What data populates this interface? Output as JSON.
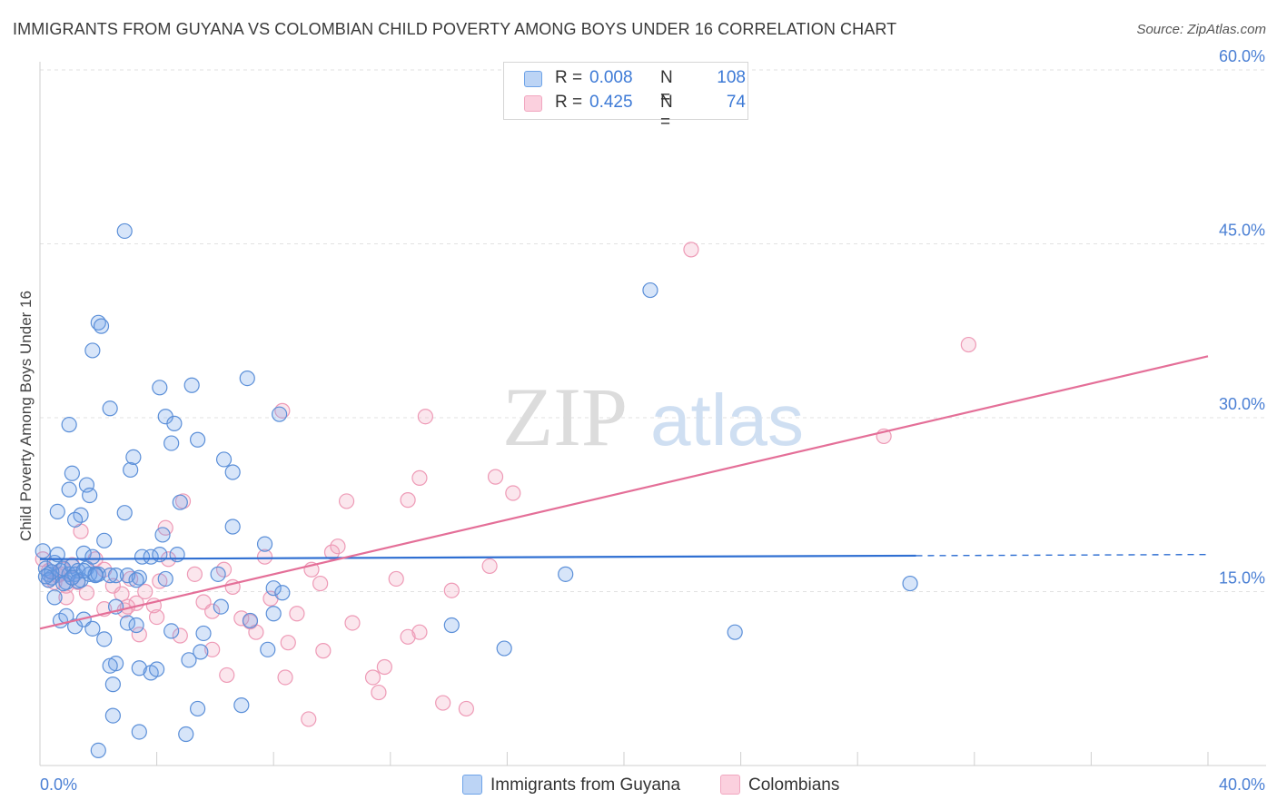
{
  "title": "IMMIGRANTS FROM GUYANA VS COLOMBIAN CHILD POVERTY AMONG BOYS UNDER 16 CORRELATION CHART",
  "source": "Source: ZipAtlas.com",
  "watermark": {
    "zip": "ZIP",
    "atlas": "atlas"
  },
  "legend_top": [
    {
      "r_label": "R =",
      "r_value": "0.008",
      "n_label": "N =",
      "n_value": "108",
      "color": "#6ea3e8"
    },
    {
      "r_label": "R =",
      "r_value": "0.425",
      "n_label": "N =",
      "n_value": "74",
      "color": "#f1a7c0"
    }
  ],
  "legend_bottom": [
    {
      "label": "Immigrants from Guyana",
      "color": "#6ea3e8"
    },
    {
      "label": "Colombians",
      "color": "#f1a7c0"
    }
  ],
  "chart_data": {
    "type": "scatter",
    "title": "IMMIGRANTS FROM GUYANA VS COLOMBIAN CHILD POVERTY AMONG BOYS UNDER 16 CORRELATION CHART",
    "xlabel": "",
    "ylabel": "Child Poverty Among Boys Under 16",
    "xlim": [
      0,
      40
    ],
    "ylim": [
      0,
      60
    ],
    "x_tick_labels": [
      "0.0%",
      "40.0%"
    ],
    "y_ticks": [
      15,
      30,
      45,
      60
    ],
    "y_tick_labels": [
      "15.0%",
      "30.0%",
      "45.0%",
      "60.0%"
    ],
    "grid": true,
    "legend_position": "top-center",
    "series": [
      {
        "name": "Immigrants from Guyana",
        "color": "#5b8fd8",
        "trend": {
          "x": [
            0,
            30
          ],
          "y": [
            17.8,
            18.1
          ],
          "dashed_extension_to": 40
        },
        "points": [
          [
            0.1,
            18.5
          ],
          [
            0.2,
            17.0
          ],
          [
            0.3,
            16.5
          ],
          [
            0.4,
            16.2
          ],
          [
            0.5,
            17.5
          ],
          [
            0.6,
            18.2
          ],
          [
            0.7,
            16.8
          ],
          [
            0.8,
            17.0
          ],
          [
            0.9,
            15.8
          ],
          [
            1.0,
            16.5
          ],
          [
            1.1,
            17.2
          ],
          [
            1.2,
            16.5
          ],
          [
            1.3,
            16.8
          ],
          [
            1.4,
            16.0
          ],
          [
            1.5,
            18.3
          ],
          [
            1.6,
            17.0
          ],
          [
            1.7,
            16.5
          ],
          [
            1.8,
            18.0
          ],
          [
            1.9,
            16.5
          ],
          [
            2.0,
            16.5
          ],
          [
            0.5,
            14.5
          ],
          [
            0.7,
            12.5
          ],
          [
            0.9,
            12.9
          ],
          [
            1.2,
            12.0
          ],
          [
            1.5,
            12.6
          ],
          [
            1.8,
            11.8
          ],
          [
            2.2,
            10.9
          ],
          [
            2.6,
            13.7
          ],
          [
            3.0,
            12.3
          ],
          [
            3.3,
            12.1
          ],
          [
            0.6,
            21.9
          ],
          [
            1.0,
            23.8
          ],
          [
            1.4,
            21.6
          ],
          [
            1.6,
            24.2
          ],
          [
            1.7,
            23.3
          ],
          [
            1.2,
            21.2
          ],
          [
            1.1,
            25.2
          ],
          [
            1.0,
            29.4
          ],
          [
            2.4,
            30.8
          ],
          [
            2.2,
            19.4
          ],
          [
            2.9,
            21.8
          ],
          [
            3.1,
            25.5
          ],
          [
            3.2,
            26.6
          ],
          [
            3.4,
            16.2
          ],
          [
            3.5,
            18.0
          ],
          [
            3.8,
            18.0
          ],
          [
            4.1,
            18.2
          ],
          [
            4.2,
            19.9
          ],
          [
            4.3,
            16.1
          ],
          [
            4.7,
            18.2
          ],
          [
            2.0,
            38.2
          ],
          [
            2.1,
            37.9
          ],
          [
            1.8,
            35.8
          ],
          [
            2.9,
            46.1
          ],
          [
            4.1,
            32.6
          ],
          [
            4.3,
            30.1
          ],
          [
            4.6,
            29.5
          ],
          [
            4.5,
            27.8
          ],
          [
            5.2,
            32.8
          ],
          [
            5.4,
            28.1
          ],
          [
            6.3,
            26.4
          ],
          [
            6.6,
            25.3
          ],
          [
            7.1,
            33.4
          ],
          [
            4.8,
            22.7
          ],
          [
            6.6,
            20.6
          ],
          [
            7.7,
            19.1
          ],
          [
            6.1,
            16.5
          ],
          [
            8.2,
            30.3
          ],
          [
            8.0,
            15.3
          ],
          [
            8.3,
            14.9
          ],
          [
            2.6,
            8.8
          ],
          [
            2.4,
            8.6
          ],
          [
            2.5,
            7.0
          ],
          [
            3.4,
            8.4
          ],
          [
            3.8,
            8.0
          ],
          [
            4.0,
            8.3
          ],
          [
            4.5,
            11.6
          ],
          [
            5.1,
            9.1
          ],
          [
            5.5,
            9.8
          ],
          [
            5.6,
            11.4
          ],
          [
            6.2,
            13.7
          ],
          [
            7.2,
            12.5
          ],
          [
            7.8,
            10.0
          ],
          [
            8.0,
            13.1
          ],
          [
            2.5,
            4.3
          ],
          [
            3.4,
            2.9
          ],
          [
            5.0,
            2.7
          ],
          [
            5.4,
            4.9
          ],
          [
            6.9,
            5.2
          ],
          [
            2.0,
            1.3
          ],
          [
            3.0,
            16.4
          ],
          [
            2.6,
            16.4
          ],
          [
            3.3,
            16.0
          ],
          [
            2.4,
            16.4
          ],
          [
            18.0,
            16.5
          ],
          [
            14.1,
            12.1
          ],
          [
            15.9,
            10.1
          ],
          [
            20.9,
            41.0
          ],
          [
            23.8,
            11.5
          ],
          [
            29.8,
            15.7
          ],
          [
            0.3,
            16.0
          ],
          [
            0.4,
            16.7
          ],
          [
            0.8,
            15.7
          ],
          [
            1.3,
            15.9
          ],
          [
            1.9,
            16.4
          ],
          [
            1.5,
            16.8
          ],
          [
            1.1,
            16.2
          ],
          [
            0.2,
            16.3
          ]
        ]
      },
      {
        "name": "Colombians",
        "color": "#ee90b0",
        "trend": {
          "x": [
            0,
            40
          ],
          "y": [
            11.8,
            35.3
          ]
        },
        "points": [
          [
            0.1,
            17.8
          ],
          [
            0.3,
            16.8
          ],
          [
            0.5,
            15.8
          ],
          [
            0.7,
            16.5
          ],
          [
            0.9,
            15.5
          ],
          [
            1.1,
            17.3
          ],
          [
            1.3,
            15.8
          ],
          [
            1.6,
            14.9
          ],
          [
            1.9,
            17.8
          ],
          [
            2.2,
            16.9
          ],
          [
            2.5,
            15.5
          ],
          [
            2.8,
            14.8
          ],
          [
            3.1,
            16.1
          ],
          [
            3.3,
            14.0
          ],
          [
            3.6,
            15.0
          ],
          [
            3.9,
            13.8
          ],
          [
            4.1,
            15.9
          ],
          [
            4.4,
            17.8
          ],
          [
            0.9,
            14.5
          ],
          [
            1.4,
            20.2
          ],
          [
            2.2,
            13.5
          ],
          [
            3.0,
            13.7
          ],
          [
            3.4,
            11.3
          ],
          [
            4.0,
            12.8
          ],
          [
            4.3,
            20.5
          ],
          [
            4.9,
            22.8
          ],
          [
            5.3,
            16.5
          ],
          [
            5.6,
            14.1
          ],
          [
            5.9,
            13.3
          ],
          [
            6.3,
            16.9
          ],
          [
            6.6,
            15.4
          ],
          [
            6.9,
            12.7
          ],
          [
            7.2,
            12.4
          ],
          [
            7.4,
            11.5
          ],
          [
            7.7,
            18.0
          ],
          [
            7.9,
            14.4
          ],
          [
            8.3,
            30.6
          ],
          [
            8.5,
            10.6
          ],
          [
            8.8,
            13.1
          ],
          [
            9.3,
            16.9
          ],
          [
            9.6,
            15.7
          ],
          [
            10.0,
            18.4
          ],
          [
            10.5,
            22.8
          ],
          [
            10.2,
            18.9
          ],
          [
            10.7,
            12.3
          ],
          [
            11.4,
            7.6
          ],
          [
            11.8,
            8.5
          ],
          [
            12.2,
            16.1
          ],
          [
            12.6,
            22.9
          ],
          [
            13.0,
            24.8
          ],
          [
            13.2,
            30.1
          ],
          [
            13.8,
            5.4
          ],
          [
            14.1,
            15.1
          ],
          [
            12.6,
            11.1
          ],
          [
            13.0,
            11.5
          ],
          [
            15.4,
            17.2
          ],
          [
            15.6,
            24.9
          ],
          [
            16.2,
            23.5
          ],
          [
            22.3,
            44.5
          ],
          [
            28.9,
            28.4
          ],
          [
            31.8,
            36.3
          ],
          [
            14.6,
            4.9
          ],
          [
            9.2,
            4.0
          ],
          [
            11.6,
            6.3
          ],
          [
            8.4,
            7.6
          ],
          [
            6.4,
            7.8
          ],
          [
            9.7,
            9.9
          ],
          [
            5.9,
            10.0
          ],
          [
            4.8,
            11.2
          ],
          [
            2.9,
            13.4
          ],
          [
            1.1,
            16.2
          ],
          [
            0.6,
            16.4
          ],
          [
            0.3,
            16.0
          ],
          [
            0.8,
            16.9
          ]
        ]
      }
    ]
  }
}
